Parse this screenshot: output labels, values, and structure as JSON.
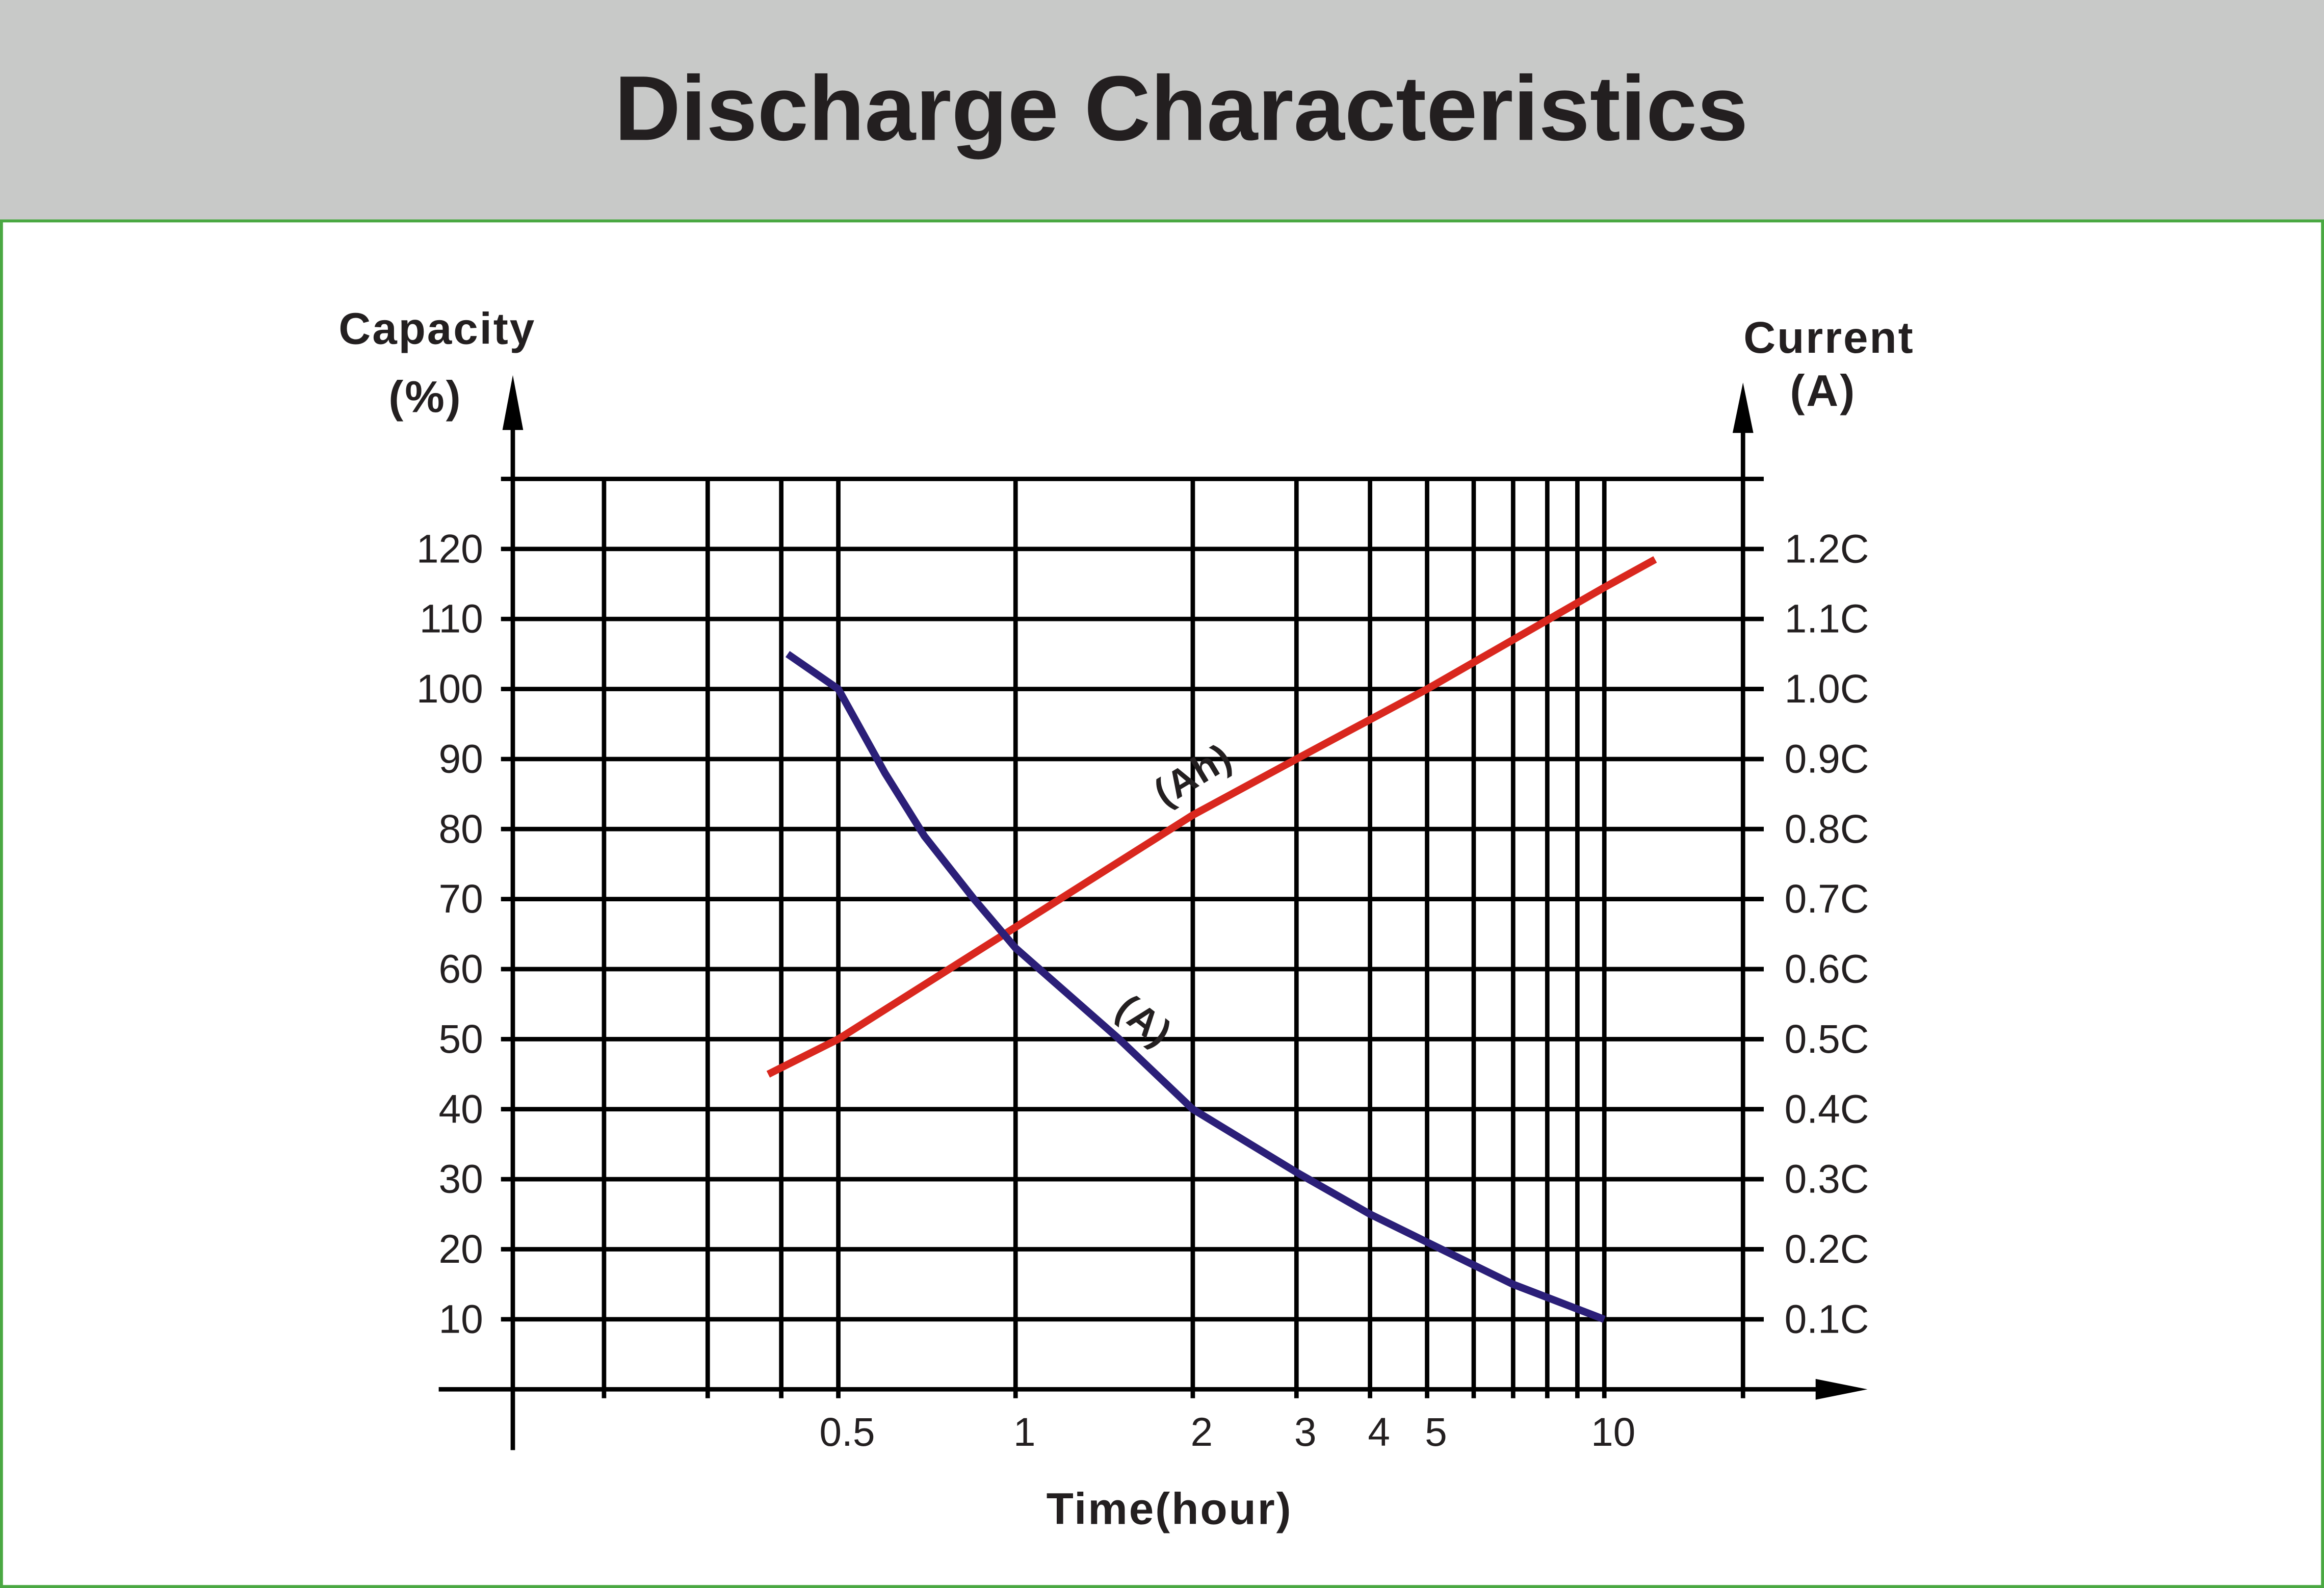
{
  "chart_data": {
    "type": "line",
    "title": "Discharge Characteristics",
    "ylabel": [
      "Capacity",
      "(%)"
    ],
    "y2label": [
      "Current",
      "(A)"
    ],
    "xlabel": "Time(hour)",
    "xscale": "log",
    "xlim": [
      0.14,
      17.2
    ],
    "xticks": [
      0.5,
      1,
      2,
      3,
      4,
      5,
      10
    ],
    "xgrid": [
      0.2,
      0.3,
      0.4,
      0.5,
      1,
      2,
      3,
      4,
      5,
      6,
      7,
      8,
      9,
      10
    ],
    "ylim": [
      0,
      130
    ],
    "yticks": [
      10,
      20,
      30,
      40,
      50,
      60,
      70,
      80,
      90,
      100,
      110,
      120
    ],
    "y2lim": [
      0,
      1.3
    ],
    "y2ticks": [
      {
        "value": 0.1,
        "label": "0.1C"
      },
      {
        "value": 0.2,
        "label": "0.2C"
      },
      {
        "value": 0.3,
        "label": "0.3C"
      },
      {
        "value": 0.4,
        "label": "0.4C"
      },
      {
        "value": 0.5,
        "label": "0.5C"
      },
      {
        "value": 0.6,
        "label": "0.6C"
      },
      {
        "value": 0.7,
        "label": "0.7C"
      },
      {
        "value": 0.8,
        "label": "0.8C"
      },
      {
        "value": 0.9,
        "label": "0.9C"
      },
      {
        "value": 1.0,
        "label": "1.0C"
      },
      {
        "value": 1.1,
        "label": "1.1C"
      },
      {
        "value": 1.2,
        "label": "1.2C"
      }
    ],
    "grid": true,
    "series": [
      {
        "name": "(Ah)",
        "color": "#d9271e",
        "axis": "y",
        "x": [
          0.38,
          0.5,
          1,
          2,
          3,
          5,
          10,
          12.2
        ],
        "values": [
          45,
          50,
          66,
          82,
          90,
          100,
          114.5,
          118.5
        ]
      },
      {
        "name": "(A)",
        "color": "#2b1f78",
        "axis": "y2",
        "x": [
          0.41,
          0.5,
          0.6,
          0.7,
          0.85,
          1,
          1.5,
          2,
          3,
          4,
          5,
          7,
          10
        ],
        "values": [
          1.05,
          1.0,
          0.88,
          0.79,
          0.7,
          0.63,
          0.5,
          0.4,
          0.31,
          0.25,
          0.21,
          0.15,
          0.1
        ]
      }
    ]
  }
}
